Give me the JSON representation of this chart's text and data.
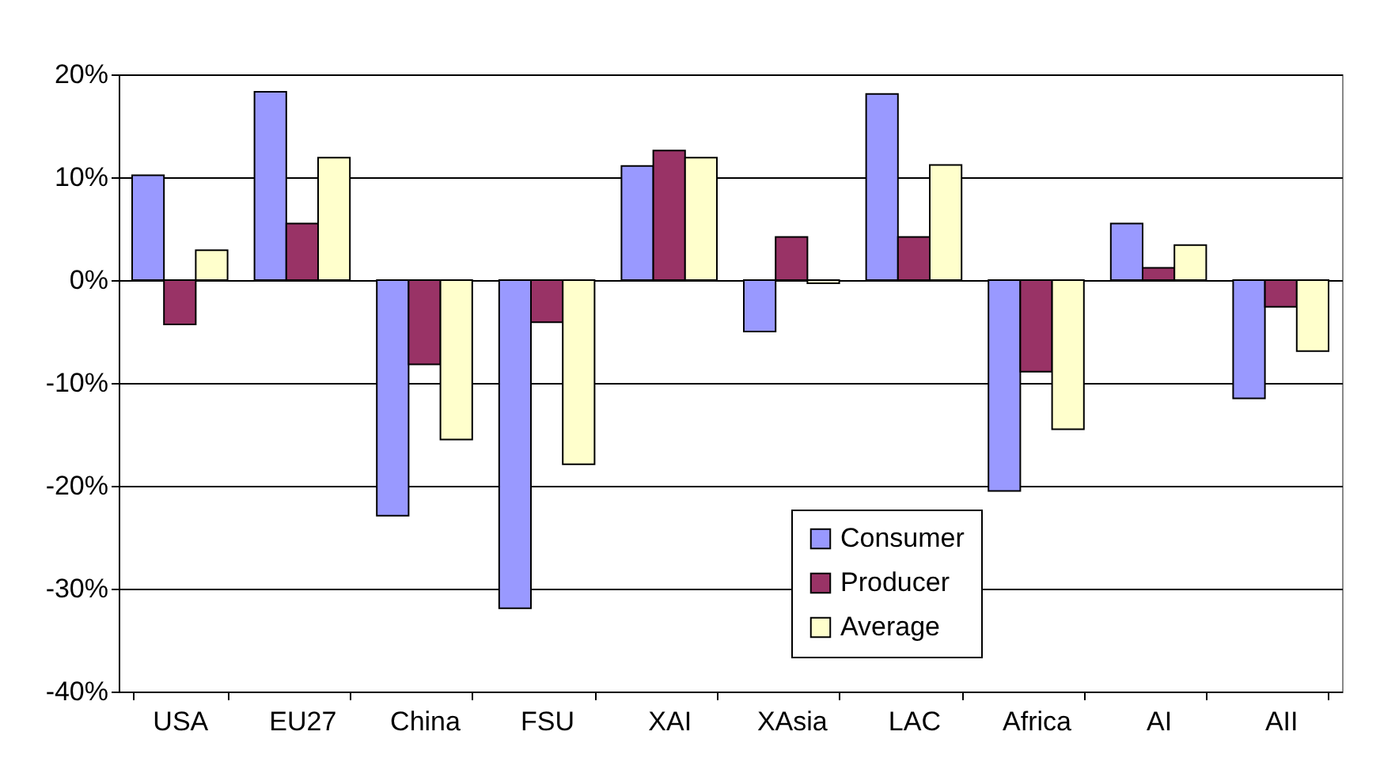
{
  "chart_data": {
    "type": "bar",
    "categories": [
      "USA",
      "EU27",
      "China",
      "FSU",
      "XAI",
      "XAsia",
      "LAC",
      "Africa",
      "AI",
      "AII"
    ],
    "series": [
      {
        "name": "Consumer",
        "color": "#9999ff",
        "values": [
          10.2,
          18.3,
          -22.9,
          -31.9,
          11.1,
          -5.0,
          18.1,
          -20.5,
          5.5,
          -11.5
        ]
      },
      {
        "name": "Producer",
        "color": "#993366",
        "values": [
          -4.3,
          5.5,
          -8.2,
          -4.1,
          12.6,
          4.2,
          4.2,
          -8.9,
          1.2,
          -2.6
        ]
      },
      {
        "name": "Average",
        "color": "#ffffcc",
        "values": [
          2.9,
          11.9,
          -15.5,
          -17.9,
          11.9,
          -0.3,
          11.2,
          -14.5,
          3.4,
          -6.9
        ]
      }
    ],
    "ylim": [
      -40,
      20
    ],
    "yticks": [
      {
        "value": -40,
        "label": "-40%"
      },
      {
        "value": -30,
        "label": "-30%"
      },
      {
        "value": -20,
        "label": "-20%"
      },
      {
        "value": -10,
        "label": "-10%"
      },
      {
        "value": 0,
        "label": "0%"
      },
      {
        "value": 10,
        "label": "10%"
      },
      {
        "value": 20,
        "label": "20%"
      }
    ],
    "grid": "y",
    "legend": "bottom"
  }
}
